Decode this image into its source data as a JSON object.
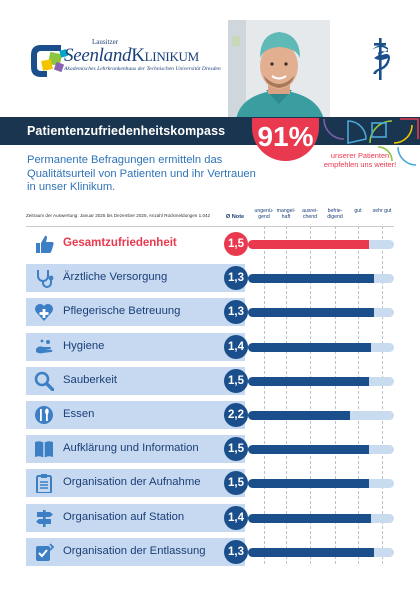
{
  "brand": {
    "pre_name": "Lausitzer",
    "name_part": "Seenland",
    "name_part2": "Klinikum",
    "subtitle": "Akademisches Lehrkrankenhaus der Technischen Universität Dresden"
  },
  "title": "Patientenzufriedenheitskompass",
  "recommend": {
    "percent_text": "91%",
    "note": "unserer Patienten empfehlen uns weiter!"
  },
  "intro": "Permanente Befragungen ermitteln das Qualitätsurteil von Patienten und ihr Vertrauen in unser Klinikum.",
  "meta": "Zeitraum der Auswertung: Januar 2025 bis Dezember 2025, Anzahl Rückmeldungen 1.042",
  "grade_header": "Ø Note",
  "colors": {
    "navy": "#1a3550",
    "bar_blue": "#1a4f8c",
    "accent_red": "#e8394f",
    "row_bg": "#c6d9f0",
    "track": "#c9dbef"
  },
  "chart_data": {
    "type": "bar",
    "orientation": "horizontal",
    "scale": {
      "labels": [
        "ungenü-gend",
        "mangel-haft",
        "ausrei-chend",
        "befrie-digend",
        "gut",
        "sehr gut"
      ],
      "grades": [
        6,
        5,
        4,
        3,
        2,
        1
      ]
    },
    "categories": [
      "Gesamtzufriedenheit",
      "Ärztliche Versorgung",
      "Pflegerische Betreuung",
      "Hygiene",
      "Sauberkeit",
      "Essen",
      "Aufklärung und Information",
      "Organisation der Aufnahme",
      "Organisation auf Station",
      "Organisation der Entlassung"
    ],
    "grade_labels": [
      "1,5",
      "1,3",
      "1,3",
      "1,4",
      "1,5",
      "2,2",
      "1,5",
      "1,5",
      "1,4",
      "1,3"
    ],
    "values": [
      1.5,
      1.3,
      1.3,
      1.4,
      1.5,
      2.2,
      1.5,
      1.5,
      1.4,
      1.3
    ],
    "icons": [
      "thumbs-up-icon",
      "stethoscope-icon",
      "heart-plus-icon",
      "hand-wash-icon",
      "magnifier-icon",
      "cutlery-icon",
      "book-icon",
      "clipboard-icon",
      "signpost-icon",
      "checklist-icon"
    ],
    "highlight_index": 0
  }
}
